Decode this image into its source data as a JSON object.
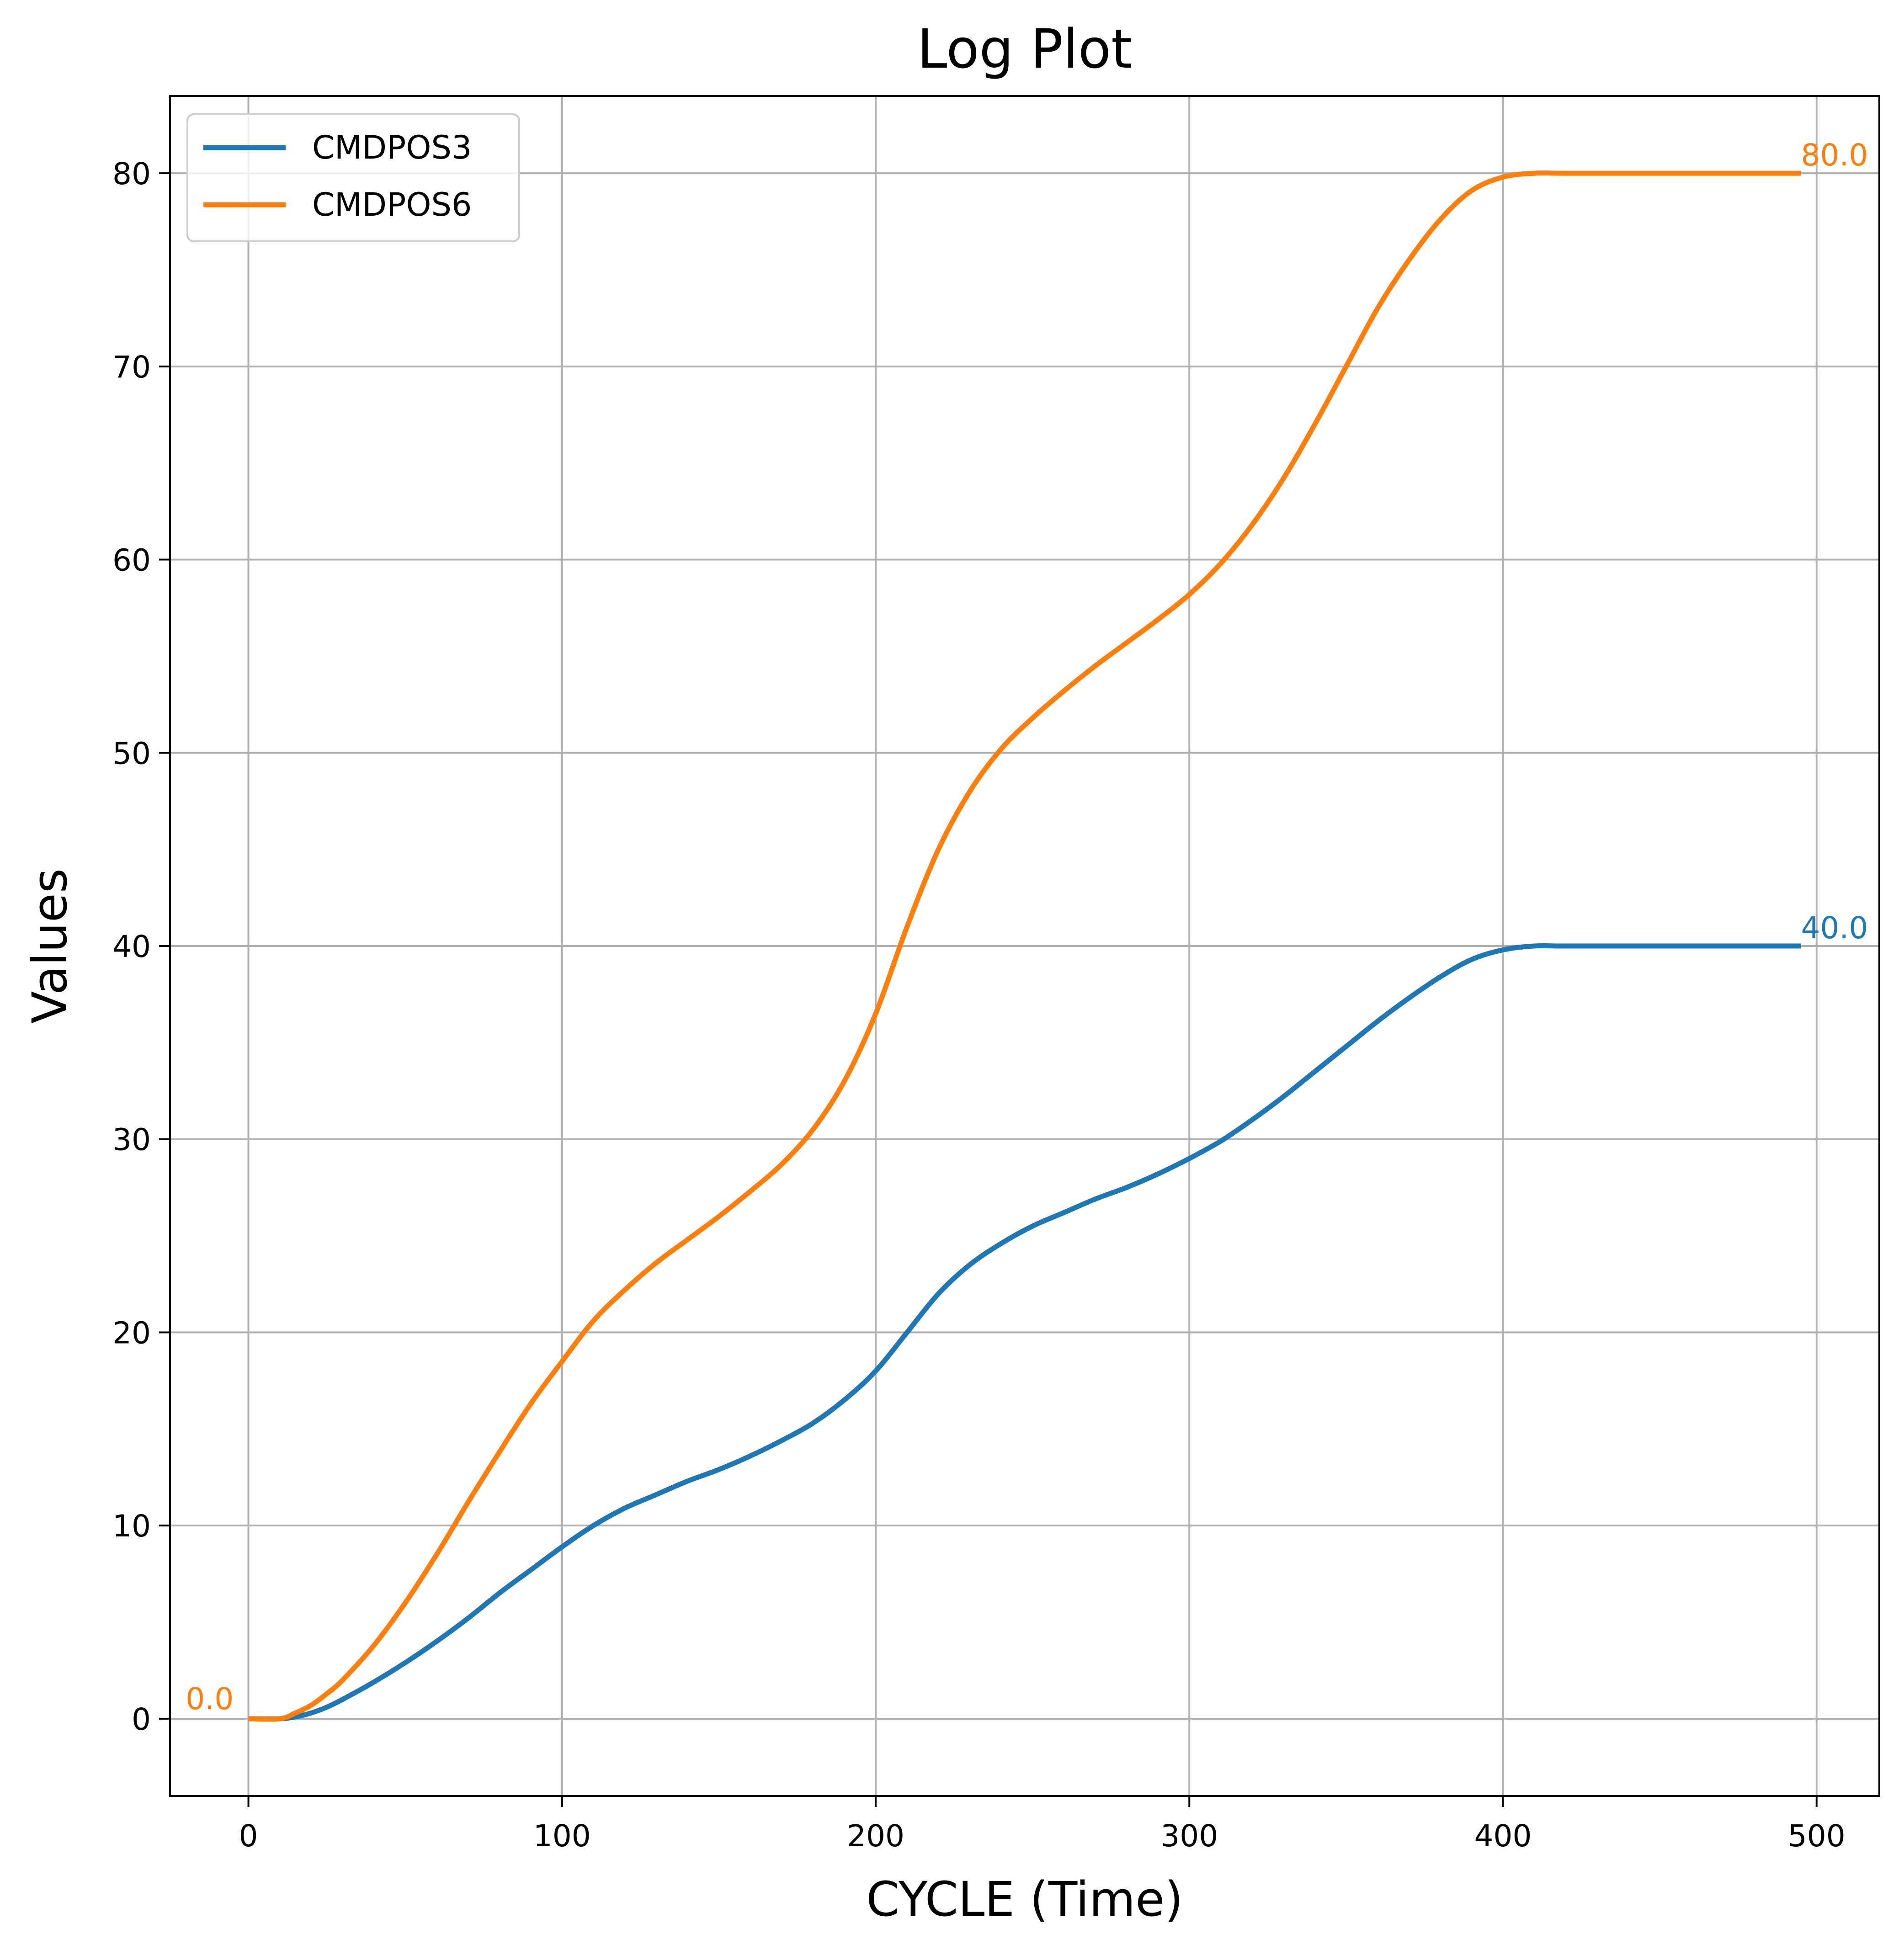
{
  "chart_data": {
    "type": "line",
    "title": "Log Plot",
    "xlabel": "CYCLE (Time)",
    "ylabel": "Values",
    "xlim": [
      -25,
      520
    ],
    "ylim": [
      -4,
      84
    ],
    "xticks": [
      0,
      100,
      200,
      300,
      400,
      500
    ],
    "yticks": [
      0,
      10,
      20,
      30,
      40,
      50,
      60,
      70,
      80
    ],
    "grid": true,
    "legend_position": "upper left",
    "colors": {
      "CMDPOS3": "#1f77b4",
      "CMDPOS6": "#ff7f0e",
      "grid": "#b0b0b0",
      "axes": "#000000"
    },
    "series": [
      {
        "name": "CMDPOS3",
        "color": "#1f77b4",
        "x": [
          0,
          10,
          15,
          20,
          25,
          30,
          40,
          50,
          60,
          70,
          80,
          90,
          100,
          110,
          120,
          130,
          140,
          150,
          160,
          170,
          180,
          190,
          200,
          210,
          220,
          230,
          240,
          250,
          260,
          270,
          280,
          290,
          300,
          310,
          320,
          330,
          340,
          350,
          360,
          370,
          380,
          390,
          400,
          410,
          420,
          450,
          480,
          495
        ],
        "values": [
          0,
          0,
          0.1,
          0.3,
          0.6,
          1.0,
          1.9,
          2.9,
          4.0,
          5.2,
          6.5,
          7.7,
          8.9,
          10.0,
          10.9,
          11.6,
          12.3,
          12.9,
          13.6,
          14.4,
          15.3,
          16.5,
          18.0,
          20.0,
          22.0,
          23.5,
          24.6,
          25.5,
          26.2,
          26.9,
          27.5,
          28.2,
          29.0,
          29.9,
          31.0,
          32.2,
          33.5,
          34.8,
          36.1,
          37.3,
          38.4,
          39.3,
          39.8,
          40.0,
          40.0,
          40.0,
          40.0,
          40.0
        ]
      },
      {
        "name": "CMDPOS6",
        "color": "#ff7f0e",
        "x": [
          0,
          10,
          15,
          20,
          25,
          30,
          40,
          50,
          60,
          70,
          80,
          90,
          100,
          110,
          120,
          130,
          140,
          150,
          160,
          170,
          180,
          190,
          200,
          210,
          220,
          230,
          240,
          250,
          260,
          270,
          280,
          290,
          300,
          310,
          320,
          330,
          340,
          350,
          360,
          370,
          380,
          390,
          400,
          410,
          420,
          450,
          480,
          495
        ],
        "values": [
          0,
          0,
          0.3,
          0.7,
          1.3,
          2.0,
          3.8,
          6.0,
          8.5,
          11.2,
          13.8,
          16.3,
          18.5,
          20.6,
          22.2,
          23.6,
          24.8,
          26.0,
          27.3,
          28.7,
          30.5,
          33.0,
          36.5,
          41.0,
          45.0,
          48.0,
          50.2,
          51.8,
          53.2,
          54.5,
          55.7,
          56.9,
          58.2,
          59.8,
          61.8,
          64.2,
          67.0,
          70.0,
          73.0,
          75.5,
          77.6,
          79.1,
          79.8,
          80.0,
          80.0,
          80.0,
          80.0,
          80.0
        ]
      }
    ],
    "annotations": [
      {
        "text": "0.0",
        "x": -20,
        "y": 0.5,
        "color": "#ff7f0e"
      },
      {
        "text": "40.0",
        "x": 495,
        "y": 40.4,
        "color": "#1f77b4"
      },
      {
        "text": "80.0",
        "x": 495,
        "y": 80.4,
        "color": "#ff7f0e"
      }
    ]
  }
}
